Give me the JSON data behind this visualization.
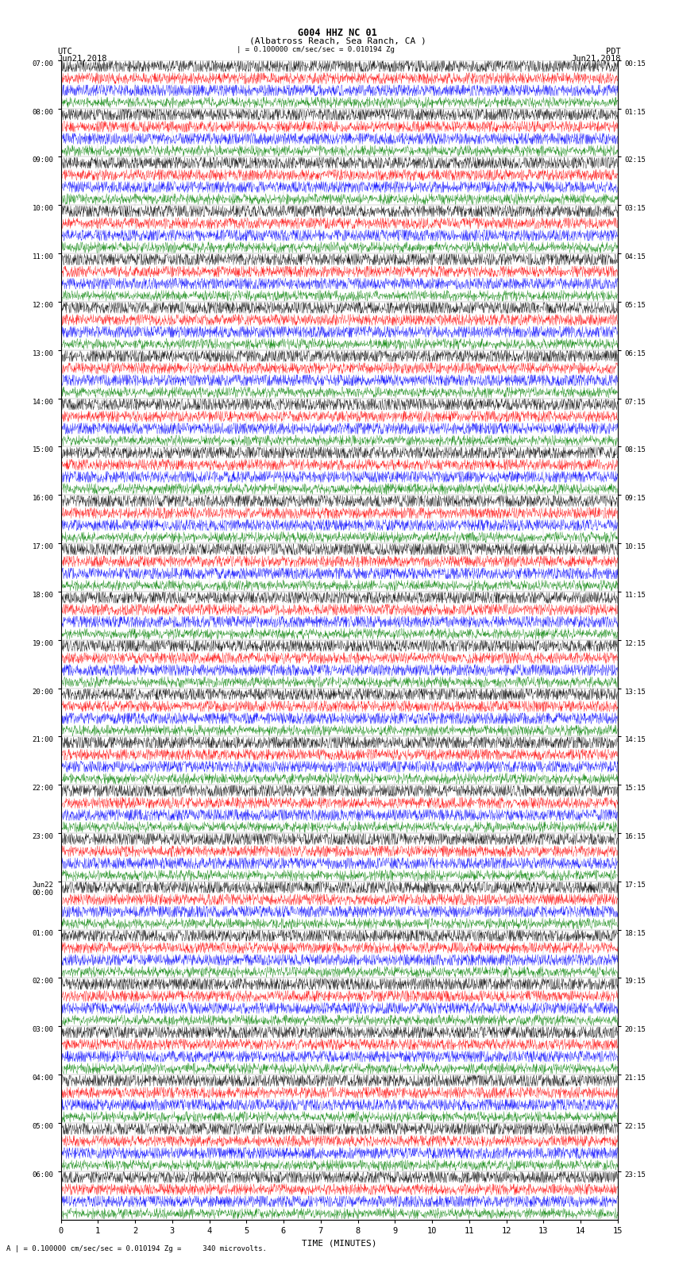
{
  "title_line1": "G004 HHZ NC 01",
  "title_line2": "(Albatross Reach, Sea Ranch, CA )",
  "scale_label": "| = 0.100000 cm/sec/sec = 0.010194 Zg",
  "left_label_top": "UTC",
  "left_label_date": "Jun21,2018",
  "right_label_top": "PDT",
  "right_label_date": "Jun21,2018",
  "bottom_label": "TIME (MINUTES)",
  "bottom_note": "A | = 0.100000 cm/sec/sec = 0.010194 Zg =     340 microvolts.",
  "xlabel_ticks": [
    0,
    1,
    2,
    3,
    4,
    5,
    6,
    7,
    8,
    9,
    10,
    11,
    12,
    13,
    14,
    15
  ],
  "left_times": [
    "07:00",
    "08:00",
    "09:00",
    "10:00",
    "11:00",
    "12:00",
    "13:00",
    "14:00",
    "15:00",
    "16:00",
    "17:00",
    "18:00",
    "19:00",
    "20:00",
    "21:00",
    "22:00",
    "23:00",
    "Jun22\n00:00",
    "01:00",
    "02:00",
    "03:00",
    "04:00",
    "05:00",
    "06:00"
  ],
  "right_times": [
    "00:15",
    "01:15",
    "02:15",
    "03:15",
    "04:15",
    "05:15",
    "06:15",
    "07:15",
    "08:15",
    "09:15",
    "10:15",
    "11:15",
    "12:15",
    "13:15",
    "14:15",
    "15:15",
    "16:15",
    "17:15",
    "18:15",
    "19:15",
    "20:15",
    "21:15",
    "22:15",
    "23:15"
  ],
  "num_rows": 24,
  "traces_per_row": 4,
  "colors": [
    "black",
    "red",
    "blue",
    "green"
  ],
  "bg_color": "white",
  "noise_amplitude": [
    0.08,
    0.06,
    0.07,
    0.05
  ],
  "fig_width": 8.5,
  "fig_height": 16.13,
  "dpi": 100
}
